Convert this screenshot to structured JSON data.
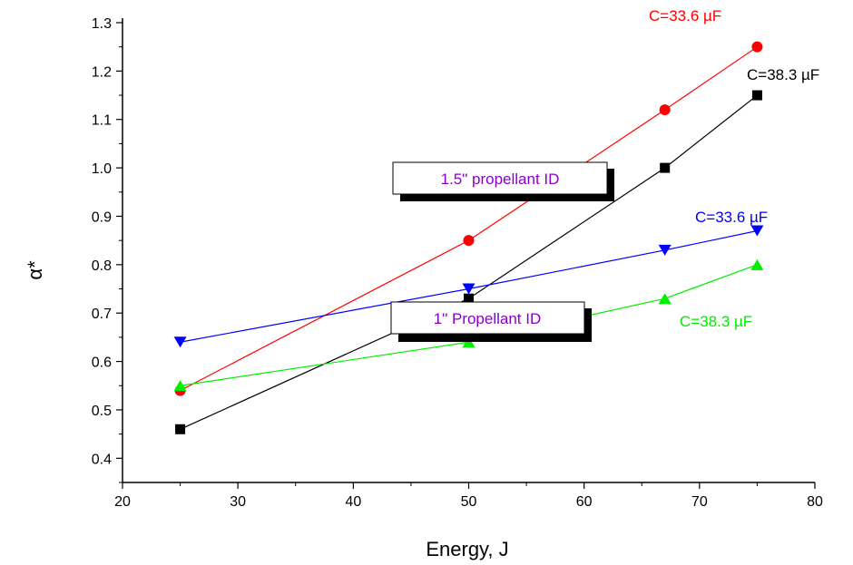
{
  "chart_data": {
    "type": "line",
    "title": "",
    "xlabel": "Energy, J",
    "ylabel": "α*",
    "xlim": [
      20,
      80
    ],
    "ylim": [
      0.35,
      1.3
    ],
    "xticks": [
      20,
      30,
      40,
      50,
      60,
      70,
      80
    ],
    "xtick_labels": [
      "20",
      "30",
      "40",
      "50",
      "60",
      "70",
      "80"
    ],
    "yticks": [
      0.4,
      0.5,
      0.6,
      0.7,
      0.8,
      0.9,
      1.0,
      1.1,
      1.2,
      1.3
    ],
    "ytick_labels": [
      "0.4",
      "0.5",
      "0.6",
      "0.7",
      "0.8",
      "0.9",
      "1.0",
      "1.1",
      "1.2",
      "1.3"
    ],
    "grid": false,
    "series": [
      {
        "name": "C=33.6 µF",
        "group": "1.5\" propellant ID",
        "color": "#ff0000",
        "marker": "circle",
        "x": [
          25,
          50,
          67,
          75
        ],
        "y": [
          0.54,
          0.85,
          1.12,
          1.25
        ]
      },
      {
        "name": "C=38.3 µF",
        "group": "1.5\" propellant ID",
        "color": "#000000",
        "marker": "square",
        "x": [
          25,
          50,
          67,
          75
        ],
        "y": [
          0.46,
          0.73,
          1.0,
          1.15
        ]
      },
      {
        "name": "C=33.6 µF",
        "group": "1\" Propellant ID",
        "color": "#0000ff",
        "marker": "triangle-down",
        "x": [
          25,
          50,
          67,
          75
        ],
        "y": [
          0.64,
          0.75,
          0.83,
          0.87
        ]
      },
      {
        "name": "C=38.3 µF",
        "group": "1\" Propellant ID",
        "color": "#00ee00",
        "marker": "triangle-up",
        "x": [
          25,
          50,
          67,
          75
        ],
        "y": [
          0.55,
          0.64,
          0.73,
          0.8
        ]
      }
    ],
    "annotations": [
      "1.5\" propellant ID",
      "1\" Propellant ID"
    ]
  }
}
